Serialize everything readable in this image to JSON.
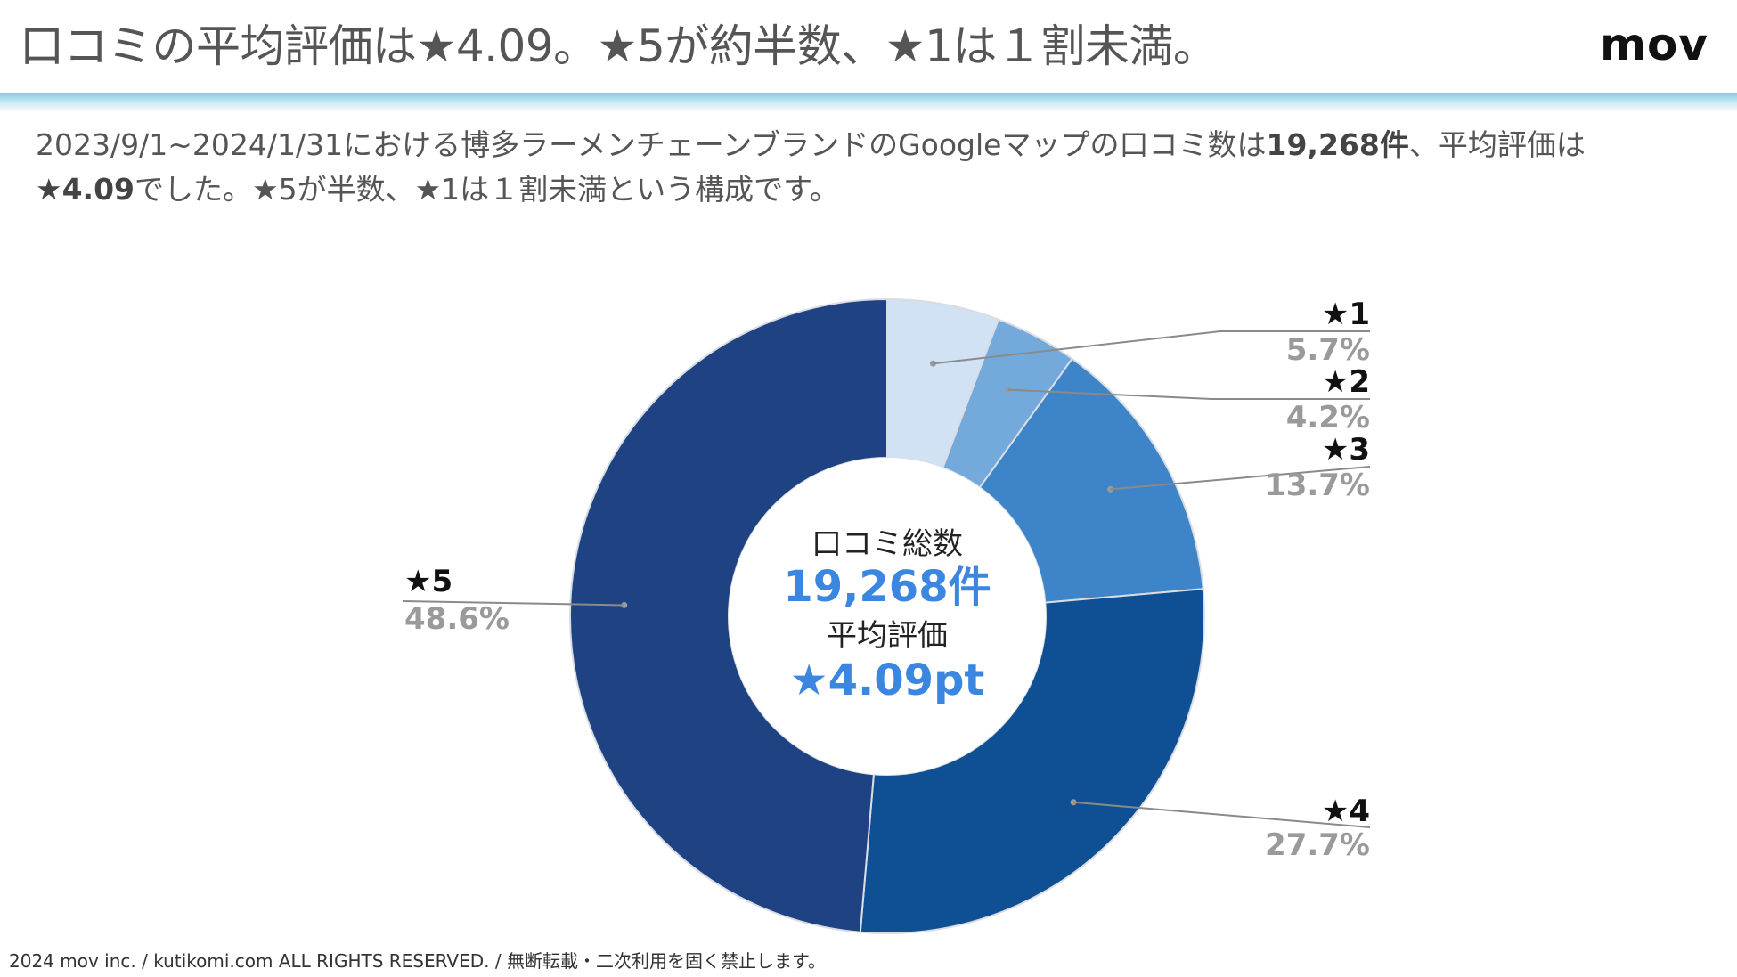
{
  "header": {
    "title": "口コミの平均評価は★4.09。★5が約半数、★1は１割未満。",
    "brand": "mov"
  },
  "summary": {
    "part1": "2023/9/1~2024/1/31における博多ラーメンチェーンブランドのGoogleマップの口コミ数は",
    "count_bold": "19,268件",
    "part2": "、平均評価は",
    "avg_bold": "★4.09",
    "part3": "でした。★5が半数、★1は１割未満という構成です。"
  },
  "chart_data": {
    "type": "pie",
    "donut": true,
    "categories": [
      "★1",
      "★2",
      "★3",
      "★4",
      "★5"
    ],
    "values": [
      5.7,
      4.2,
      13.7,
      27.7,
      48.6
    ],
    "value_labels": [
      "5.7%",
      "4.2%",
      "13.7%",
      "27.7%",
      "48.6%"
    ],
    "colors": [
      "#d0e2f3",
      "#74a9dc",
      "#3d84c8",
      "#0e5093",
      "#1e4282"
    ],
    "center": {
      "line1": "口コミ総数",
      "line2": "19,268件",
      "line3": "平均評価",
      "line4": "★4.09pt"
    },
    "accent_color": "#3a86e0"
  },
  "footer": {
    "text": "2024 mov inc. / kutikomi.com ALL RIGHTS RESERVED. / 無断転載・二次利用を固く禁止します。"
  }
}
